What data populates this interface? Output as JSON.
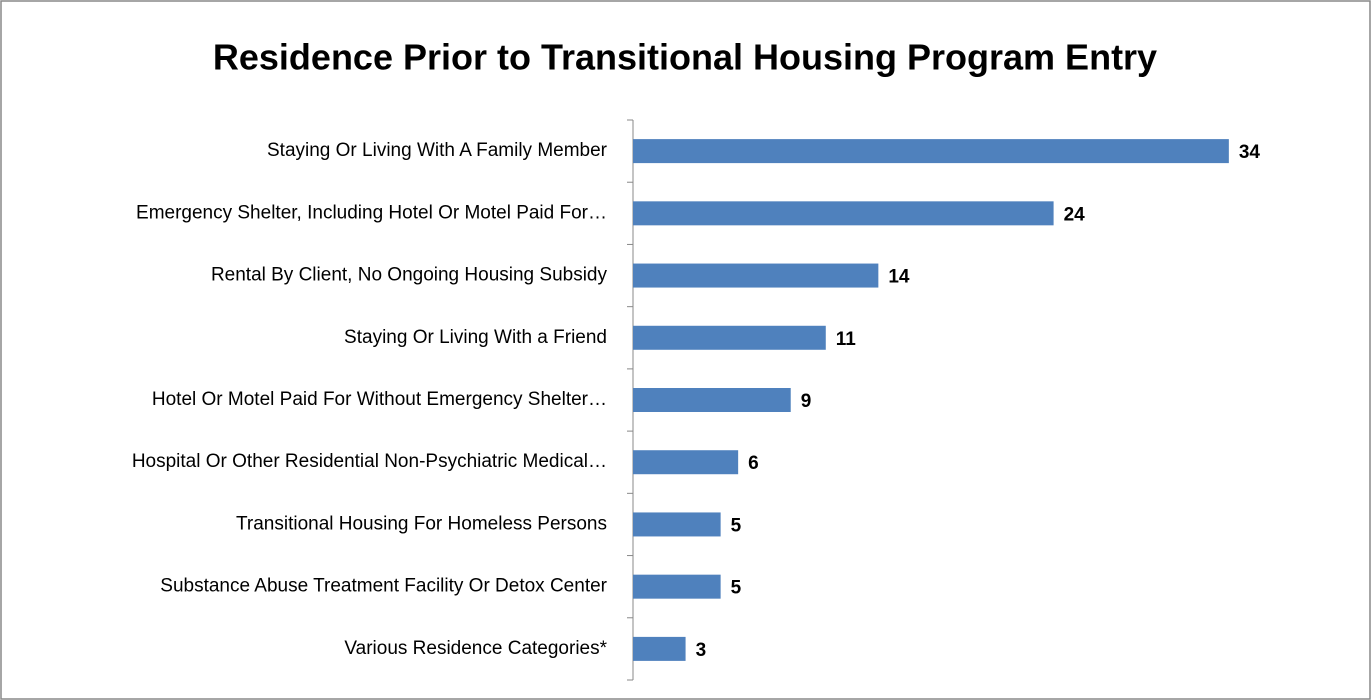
{
  "chart_data": {
    "type": "bar",
    "orientation": "horizontal",
    "title": "Residence Prior to Transitional Housing Program Entry",
    "categories": [
      "Staying Or Living With A Family Member",
      "Emergency Shelter, Including Hotel Or Motel Paid For…",
      "Rental By Client, No Ongoing Housing Subsidy",
      "Staying Or Living With a Friend",
      "Hotel Or Motel Paid For Without Emergency Shelter…",
      "Hospital Or Other Residential Non-Psychiatric Medical…",
      "Transitional Housing For Homeless Persons",
      "Substance Abuse Treatment Facility Or Detox Center",
      "Various Residence Categories*"
    ],
    "values": [
      34,
      24,
      14,
      11,
      9,
      6,
      5,
      5,
      3
    ],
    "color": "#4f81bd",
    "xlim": [
      0,
      40
    ]
  }
}
